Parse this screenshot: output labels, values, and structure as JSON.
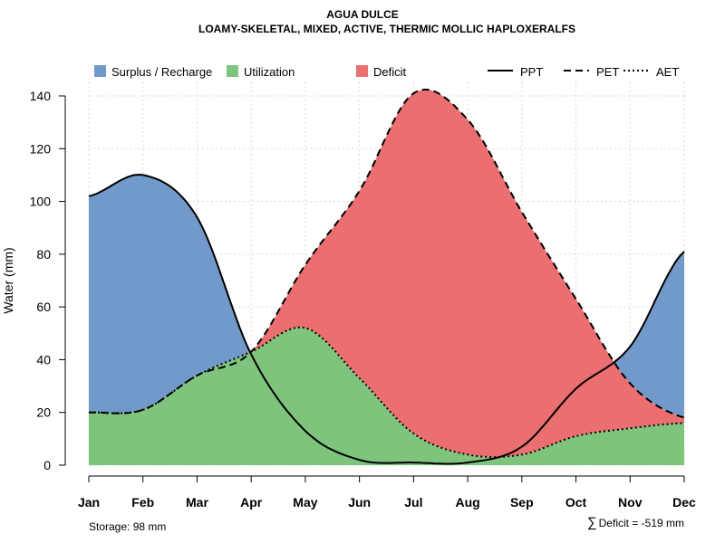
{
  "chart_data": {
    "type": "area",
    "title": "AGUA DULCE",
    "subtitle": "LOAMY-SKELETAL, MIXED, ACTIVE, THERMIC MOLLIC HAPLOXERALFS",
    "xlabel": "",
    "ylabel": "Water (mm)",
    "ylim": [
      0,
      142
    ],
    "yticks": [
      0,
      20,
      40,
      60,
      80,
      100,
      120,
      140
    ],
    "grid": true,
    "legend_position": "top",
    "categories": [
      "Jan",
      "Feb",
      "Mar",
      "Apr",
      "May",
      "Jun",
      "Jul",
      "Aug",
      "Sep",
      "Oct",
      "Nov",
      "Dec"
    ],
    "series": [
      {
        "name": "PPT",
        "style": "solid",
        "values": [
          102,
          110,
          94,
          42,
          13,
          2,
          1,
          1,
          7,
          29,
          45,
          81
        ]
      },
      {
        "name": "PET",
        "style": "dashed",
        "values": [
          20,
          21,
          34,
          43,
          76,
          104,
          141,
          131,
          96,
          63,
          31,
          18
        ]
      },
      {
        "name": "AET",
        "style": "dotted",
        "values": [
          20,
          21,
          34,
          43,
          52,
          33,
          12,
          4,
          4,
          11,
          14,
          16
        ]
      }
    ],
    "fill_legend": [
      {
        "name": "Surplus / Recharge",
        "color": "#7199C9"
      },
      {
        "name": "Utilization",
        "color": "#7EC47C"
      },
      {
        "name": "Deficit",
        "color": "#EB6F70"
      }
    ],
    "annotations": {
      "storage": "Storage: 98 mm",
      "deficit_symbol": "∑",
      "deficit": "Deficit = -519 mm"
    }
  }
}
